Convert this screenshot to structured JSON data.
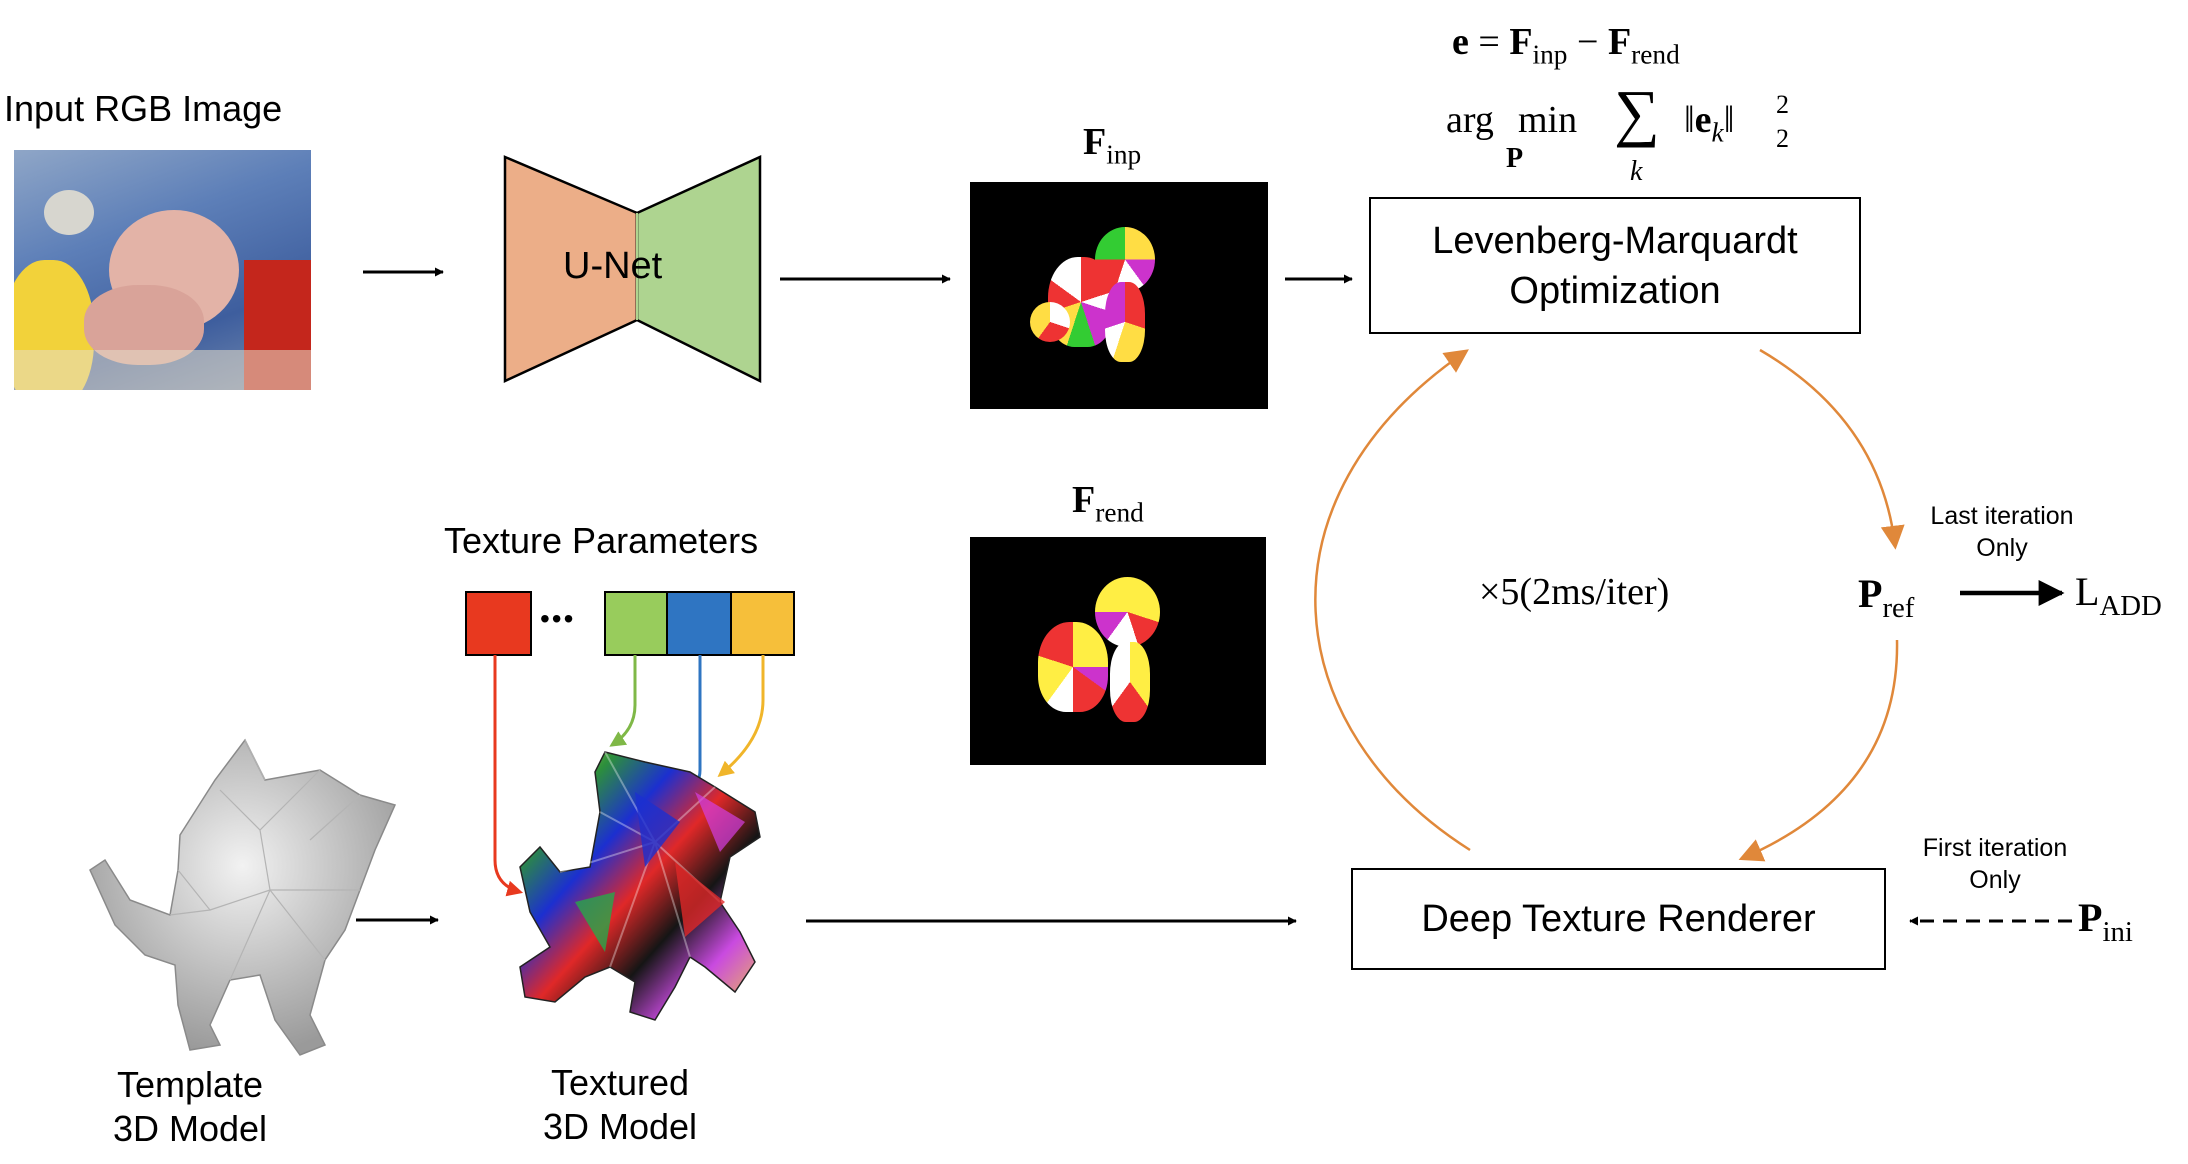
{
  "input": {
    "label": "Input RGB Image"
  },
  "unet": {
    "label": "U-Net"
  },
  "features": {
    "inp_label_base": "F",
    "inp_label_sub": "inp",
    "rend_label_base": "F",
    "rend_label_sub": "rend"
  },
  "equation": {
    "line1": "e = F_inp − F_rend",
    "line2": "arg min_P Σ_k ‖e_k‖²₂",
    "e": "e",
    "eq": " = ",
    "F": "F",
    "inp": "inp",
    "minus": " − ",
    "rend": "rend",
    "arg": "arg",
    "min": "min",
    "P": "P",
    "sum": "∑",
    "k": "k",
    "norm_open": "‖",
    "ek": "e",
    "norm_close": "‖",
    "sup2": "2",
    "sub2": "2"
  },
  "lm_box": {
    "line1": "Levenberg-Marquardt",
    "line2": "Optimization"
  },
  "renderer_box": {
    "label": "Deep Texture Renderer"
  },
  "loop": {
    "label": "×5(2ms/iter)"
  },
  "texture": {
    "label": "Texture Parameters",
    "ellipsis": "•••"
  },
  "template": {
    "line1": "Template",
    "line2": "3D Model"
  },
  "textured": {
    "line1": "Textured",
    "line2": "3D Model"
  },
  "pose": {
    "P": "P",
    "ref": "ref",
    "ini": "ini",
    "L": "L",
    "add": "ADD",
    "last_line1": "Last iteration",
    "last_line2": "Only",
    "first_line1": "First iteration",
    "first_line2": "Only"
  },
  "colors": {
    "unet_left": "#ecae88",
    "unet_right": "#aed490",
    "loop_arrow": "#e0883a",
    "param_red": "#e8391f",
    "param_green": "#98cc5c",
    "param_blue": "#2f75c2",
    "param_yellow": "#f6bf3a"
  }
}
